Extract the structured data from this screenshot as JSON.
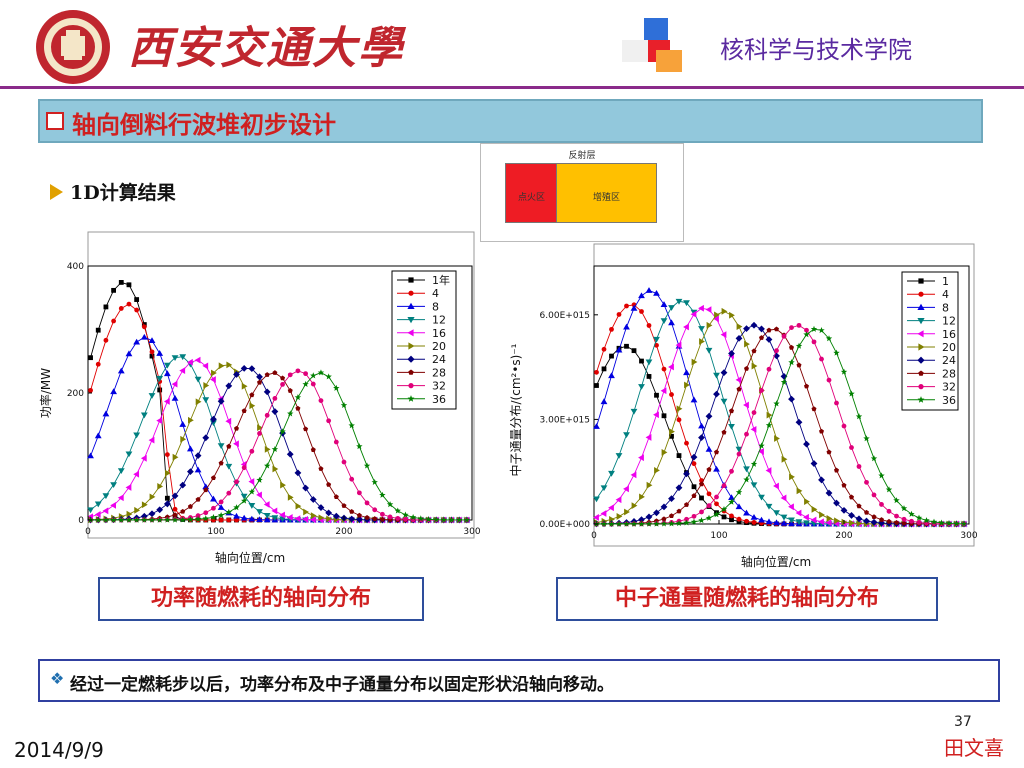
{
  "header": {
    "university": "西安交通大學",
    "college": "核科学与技术学院"
  },
  "title": "轴向倒料行波堆初步设计",
  "bullet": "1D计算结果",
  "schematic": {
    "title": "反射层",
    "zone1": "点火区",
    "zone2": "增殖区"
  },
  "captions": {
    "power": "功率随燃耗的轴向分布",
    "flux": "中子通量随燃耗的轴向分布"
  },
  "note": "经过一定燃耗步以后，功率分布及中子通量分布以固定形状沿轴向移动。",
  "footer": {
    "page": "37",
    "author": "田文喜",
    "date": "2014/9/9"
  },
  "chart_data": [
    {
      "type": "line",
      "xlabel": "轴向位置/cm",
      "ylabel": "功率/MW",
      "xlim": [
        0,
        300
      ],
      "ylim": [
        0,
        400
      ],
      "xticks": [
        "0",
        "100",
        "200",
        "300"
      ],
      "yticks": [
        "0",
        "200",
        "400"
      ],
      "legend_position": "top-right",
      "series": [
        {
          "name": "1年",
          "peak_x": 28,
          "peak_y": 375
        },
        {
          "name": "4",
          "peak_x": 32,
          "peak_y": 340
        },
        {
          "name": "8",
          "peak_x": 45,
          "peak_y": 288
        },
        {
          "name": "12",
          "peak_x": 72,
          "peak_y": 258
        },
        {
          "name": "16",
          "peak_x": 85,
          "peak_y": 252
        },
        {
          "name": "20",
          "peak_x": 108,
          "peak_y": 245
        },
        {
          "name": "24",
          "peak_x": 125,
          "peak_y": 240
        },
        {
          "name": "28",
          "peak_x": 145,
          "peak_y": 232
        },
        {
          "name": "32",
          "peak_x": 165,
          "peak_y": 235
        },
        {
          "name": "36",
          "peak_x": 182,
          "peak_y": 232
        }
      ]
    },
    {
      "type": "line",
      "xlabel": "轴向位置/cm",
      "ylabel": "中子通量分布/(cm²•s)⁻¹",
      "xlim": [
        0,
        300
      ],
      "ylim": [
        0,
        7400000000000000.0
      ],
      "xticks": [
        "0",
        "100",
        "200",
        "300"
      ],
      "yticks": [
        "0.00E+000",
        "3.00E+015",
        "6.00E+015"
      ],
      "legend_position": "top-right",
      "series": [
        {
          "name": "1",
          "peak_x": 25,
          "peak_y": 5100000000000000.0
        },
        {
          "name": "4",
          "peak_x": 30,
          "peak_y": 6300000000000000.0
        },
        {
          "name": "8",
          "peak_x": 45,
          "peak_y": 6700000000000000.0
        },
        {
          "name": "12",
          "peak_x": 70,
          "peak_y": 6400000000000000.0
        },
        {
          "name": "16",
          "peak_x": 88,
          "peak_y": 6200000000000000.0
        },
        {
          "name": "20",
          "peak_x": 104,
          "peak_y": 6100000000000000.0
        },
        {
          "name": "24",
          "peak_x": 128,
          "peak_y": 5700000000000000.0
        },
        {
          "name": "28",
          "peak_x": 144,
          "peak_y": 5600000000000000.0
        },
        {
          "name": "32",
          "peak_x": 163,
          "peak_y": 5700000000000000.0
        },
        {
          "name": "36",
          "peak_x": 178,
          "peak_y": 5600000000000000.0
        }
      ]
    }
  ],
  "colors": [
    "#000000",
    "#e00000",
    "#0000e0",
    "#008080",
    "#ee00ee",
    "#808000",
    "#000080",
    "#800000",
    "#e0007a",
    "#008000"
  ],
  "markers": [
    "square",
    "circle",
    "triangle-up",
    "triangle-down",
    "triangle-left",
    "triangle-right",
    "diamond",
    "pentagon",
    "circle",
    "star"
  ]
}
